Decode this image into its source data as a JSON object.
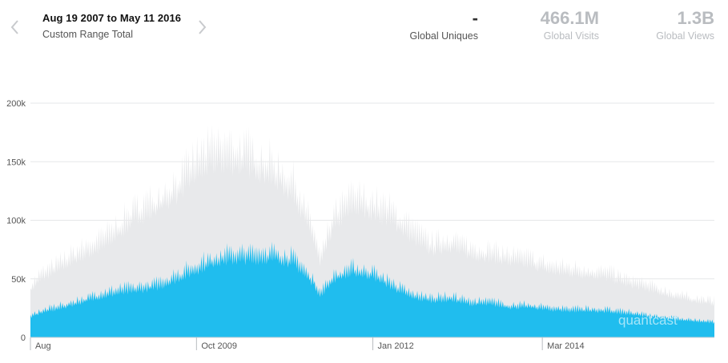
{
  "header": {
    "date_range": "Aug 19 2007 to May 11 2016",
    "range_label": "Custom Range Total",
    "stats": [
      {
        "value": "-",
        "label": "Global Uniques"
      },
      {
        "value": "466.1M",
        "label": "Global Visits"
      },
      {
        "value": "1.3B",
        "label": "Global Views"
      }
    ]
  },
  "watermark": "quantcast",
  "chart_data": {
    "type": "area",
    "title": "",
    "xlabel": "",
    "ylabel": "",
    "x_range": [
      "2007-08-19",
      "2016-05-11"
    ],
    "ylim": [
      0,
      200000
    ],
    "y_ticks": [
      0,
      50000,
      100000,
      150000,
      200000
    ],
    "y_tick_labels": [
      "0",
      "50k",
      "100k",
      "150k",
      "200k"
    ],
    "x_tick_labels": [
      {
        "date": "2007-08-19",
        "label": "Aug"
      },
      {
        "date": "2009-10-01",
        "label": "Oct 2009"
      },
      {
        "date": "2012-01-01",
        "label": "Jan 2012"
      },
      {
        "date": "2014-03-01",
        "label": "Mar 2014"
      }
    ],
    "grid": true,
    "legend": "none",
    "colors": {
      "views": "#e8e9eb",
      "visits": "#20bdee"
    },
    "series": [
      {
        "key": "views",
        "values": [
          [
            "2007-08-19",
            42000
          ],
          [
            "2007-10-01",
            52000
          ],
          [
            "2008-01-01",
            62000
          ],
          [
            "2008-04-01",
            72000
          ],
          [
            "2008-07-01",
            80000
          ],
          [
            "2008-10-01",
            93000
          ],
          [
            "2009-01-01",
            108000
          ],
          [
            "2009-04-01",
            115000
          ],
          [
            "2009-07-01",
            128000
          ],
          [
            "2009-10-01",
            148000
          ],
          [
            "2010-01-01",
            158000
          ],
          [
            "2010-04-01",
            156000
          ],
          [
            "2010-07-01",
            152000
          ],
          [
            "2010-10-01",
            142000
          ],
          [
            "2011-01-01",
            128000
          ],
          [
            "2011-04-01",
            88000
          ],
          [
            "2011-05-01",
            65000
          ],
          [
            "2011-07-01",
            100000
          ],
          [
            "2011-10-01",
            118000
          ],
          [
            "2012-01-01",
            112000
          ],
          [
            "2012-04-01",
            105000
          ],
          [
            "2012-07-01",
            90000
          ],
          [
            "2012-10-01",
            78000
          ],
          [
            "2013-01-01",
            82000
          ],
          [
            "2013-04-01",
            74000
          ],
          [
            "2013-07-01",
            72000
          ],
          [
            "2013-10-01",
            68000
          ],
          [
            "2014-01-01",
            66000
          ],
          [
            "2014-04-01",
            60000
          ],
          [
            "2014-07-01",
            58000
          ],
          [
            "2014-10-01",
            56000
          ],
          [
            "2015-01-01",
            54000
          ],
          [
            "2015-04-01",
            48000
          ],
          [
            "2015-07-01",
            44000
          ],
          [
            "2015-10-01",
            38000
          ],
          [
            "2016-01-01",
            34000
          ],
          [
            "2016-05-11",
            30000
          ]
        ]
      },
      {
        "key": "visits",
        "values": [
          [
            "2007-08-19",
            18000
          ],
          [
            "2007-10-01",
            22000
          ],
          [
            "2008-01-01",
            26000
          ],
          [
            "2008-04-01",
            31000
          ],
          [
            "2008-07-01",
            36000
          ],
          [
            "2008-10-01",
            40000
          ],
          [
            "2009-01-01",
            42000
          ],
          [
            "2009-04-01",
            45000
          ],
          [
            "2009-07-01",
            52000
          ],
          [
            "2009-10-01",
            60000
          ],
          [
            "2010-01-01",
            68000
          ],
          [
            "2010-04-01",
            70000
          ],
          [
            "2010-07-01",
            70000
          ],
          [
            "2010-10-01",
            71000
          ],
          [
            "2011-01-01",
            66000
          ],
          [
            "2011-04-01",
            48000
          ],
          [
            "2011-05-01",
            37000
          ],
          [
            "2011-07-01",
            52000
          ],
          [
            "2011-10-01",
            58000
          ],
          [
            "2012-01-01",
            55000
          ],
          [
            "2012-04-01",
            45000
          ],
          [
            "2012-07-01",
            36000
          ],
          [
            "2012-10-01",
            33000
          ],
          [
            "2013-01-01",
            34000
          ],
          [
            "2013-04-01",
            30000
          ],
          [
            "2013-07-01",
            30000
          ],
          [
            "2013-10-01",
            27000
          ],
          [
            "2014-01-01",
            27000
          ],
          [
            "2014-04-01",
            25000
          ],
          [
            "2014-07-01",
            24000
          ],
          [
            "2014-10-01",
            24000
          ],
          [
            "2015-01-01",
            23000
          ],
          [
            "2015-04-01",
            21000
          ],
          [
            "2015-07-01",
            19000
          ],
          [
            "2015-10-01",
            17000
          ],
          [
            "2016-01-01",
            15000
          ],
          [
            "2016-05-11",
            13000
          ]
        ]
      }
    ]
  }
}
